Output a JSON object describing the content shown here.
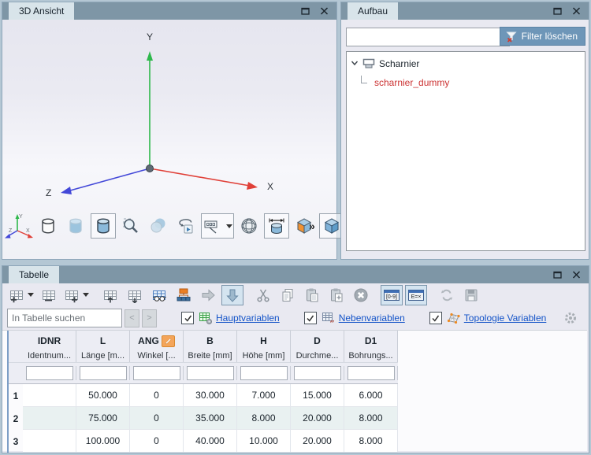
{
  "colors": {
    "titlebar": "#7e96a6",
    "tab_bg": "#d8e4ea",
    "panel_bg": "#e9e9f1",
    "link": "#1353c8",
    "tree_item_red": "#cc3333",
    "filter_button_bg": "#6e96b8",
    "row_alt": "#e9f1f1",
    "axis_x": "#e04038",
    "axis_y": "#2eb84b",
    "axis_z": "#4348d8",
    "edit_badge": "#f4a55a"
  },
  "view3d": {
    "title": "3D Ansicht",
    "axis_labels": {
      "x": "X",
      "y": "Y",
      "z": "Z"
    },
    "overflow_label": "»",
    "toolbar": [
      {
        "icon": "wireframe-cylinder"
      },
      {
        "icon": "shaded-cylinder-faint"
      },
      {
        "icon": "shaded-cylinder",
        "pressed": true
      },
      {
        "icon": "zoom-fit"
      },
      {
        "icon": "transparency-sphere"
      },
      {
        "icon": "rotate-view"
      },
      {
        "icon": "dimension-label",
        "pressed": true,
        "caret": true
      },
      {
        "icon": "mesh-sphere"
      },
      {
        "icon": "measure-cylinder",
        "pressed": true
      },
      {
        "icon": "orange-face-box"
      },
      {
        "icon": "blue-cube",
        "pressed": true
      }
    ]
  },
  "aufbau": {
    "title": "Aufbau",
    "filter_input_value": "",
    "filter_button_label": "Filter löschen",
    "tree": [
      {
        "label": "Scharnier",
        "level": 0,
        "expanded": true,
        "icon": "assembly",
        "red": false
      },
      {
        "label": "scharnier_dummy",
        "level": 1,
        "red": true
      }
    ]
  },
  "tabelle": {
    "title": "Tabelle",
    "toolbar": [
      {
        "icon": "add-row",
        "caret": true
      },
      {
        "icon": "remove-row"
      },
      {
        "icon": "add-column",
        "caret": true
      },
      {
        "icon": "move-row-up",
        "gap": true
      },
      {
        "icon": "move-row-down"
      },
      {
        "icon": "search-table"
      },
      {
        "icon": "hierarchy"
      },
      {
        "icon": "transfer-right"
      },
      {
        "icon": "transfer-down",
        "pressed": true
      },
      {
        "icon": "cut",
        "gap": true
      },
      {
        "icon": "copy"
      },
      {
        "icon": "paste"
      },
      {
        "icon": "paste-special"
      },
      {
        "icon": "delete"
      },
      {
        "icon": "numeric-mode",
        "pressed": true,
        "gap": true
      },
      {
        "icon": "formula-mode",
        "pressed": true
      },
      {
        "icon": "refresh",
        "disabled": true,
        "gap": true
      },
      {
        "icon": "save",
        "disabled": true
      }
    ],
    "search_placeholder": "In Tabelle suchen",
    "prev_label": "<",
    "next_label": ">",
    "filters": [
      {
        "label": "Hauptvariablen",
        "checked": true,
        "icon": "main-variables"
      },
      {
        "label": "Nebenvariablen",
        "checked": true,
        "icon": "secondary-variables"
      },
      {
        "label": "Topologie Variablen",
        "checked": true,
        "icon": "topology-variables"
      }
    ],
    "grid": {
      "columns": [
        {
          "code": "IDNR",
          "desc": "Identnum..."
        },
        {
          "code": "L",
          "desc": "Länge [m..."
        },
        {
          "code": "ANG",
          "desc": "Winkel [...",
          "edit_badge": true
        },
        {
          "code": "B",
          "desc": "Breite [mm]"
        },
        {
          "code": "H",
          "desc": "Höhe [mm]"
        },
        {
          "code": "D",
          "desc": "Durchme..."
        },
        {
          "code": "D1",
          "desc": "Bohrungs..."
        }
      ],
      "rows": [
        {
          "num": "1",
          "cells": [
            "",
            "50.000",
            "0",
            "30.000",
            "7.000",
            "15.000",
            "6.000"
          ]
        },
        {
          "num": "2",
          "cells": [
            "",
            "75.000",
            "0",
            "35.000",
            "8.000",
            "20.000",
            "8.000"
          ]
        },
        {
          "num": "3",
          "cells": [
            "",
            "100.000",
            "0",
            "40.000",
            "10.000",
            "20.000",
            "8.000"
          ]
        }
      ]
    }
  }
}
